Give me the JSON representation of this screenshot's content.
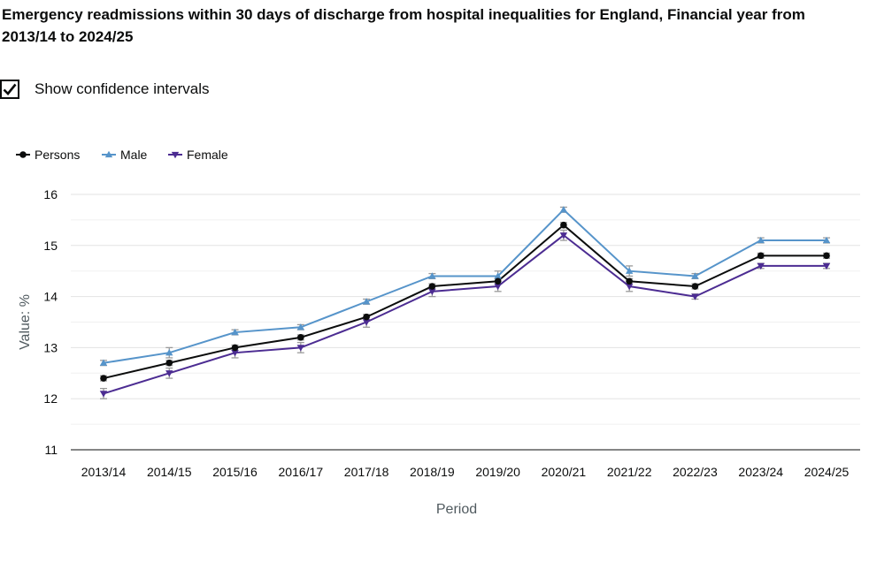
{
  "page": {
    "title": "Emergency readmissions within 30 days of discharge from hospital inequalities for England, Financial year from 2013/14 to 2024/25",
    "toggle_label": "Show confidence intervals",
    "toggle_checked": true,
    "toggle_icon": "check-icon"
  },
  "chart_data": {
    "type": "line",
    "title": "Emergency readmissions within 30 days of discharge from hospital inequalities for England, Financial year from 2013/14 to 2024/25",
    "xlabel": "Period",
    "ylabel": "Value: %",
    "ylim": [
      11,
      16
    ],
    "yticks": [
      11,
      12,
      13,
      14,
      15,
      16
    ],
    "grid": true,
    "legend_position": "top-left",
    "confidence_intervals_shown": true,
    "categories": [
      "2013/14",
      "2014/15",
      "2015/16",
      "2016/17",
      "2017/18",
      "2018/19",
      "2019/20",
      "2020/21",
      "2021/22",
      "2022/23",
      "2023/24",
      "2024/25"
    ],
    "series": [
      {
        "name": "Persons",
        "color": "#0b0c0c",
        "marker": "circle",
        "values": [
          12.4,
          12.7,
          13.0,
          13.2,
          13.6,
          14.2,
          14.3,
          15.4,
          14.3,
          14.2,
          14.8,
          14.8
        ],
        "ci_lower": [
          12.35,
          12.65,
          12.95,
          13.15,
          13.55,
          14.15,
          14.25,
          15.35,
          14.25,
          14.15,
          14.75,
          14.75
        ],
        "ci_upper": [
          12.45,
          12.75,
          13.05,
          13.25,
          13.65,
          14.25,
          14.35,
          15.45,
          14.35,
          14.25,
          14.85,
          14.85
        ]
      },
      {
        "name": "Male",
        "color": "#5694ca",
        "marker": "triangle-up",
        "values": [
          12.7,
          12.9,
          13.3,
          13.4,
          13.9,
          14.4,
          14.4,
          15.7,
          14.5,
          14.4,
          15.1,
          15.1
        ],
        "ci_lower": [
          12.65,
          12.8,
          13.25,
          13.35,
          13.85,
          14.35,
          14.3,
          15.65,
          14.4,
          14.35,
          15.05,
          15.05
        ],
        "ci_upper": [
          12.75,
          13.0,
          13.35,
          13.45,
          13.95,
          14.45,
          14.5,
          15.75,
          14.6,
          14.45,
          15.15,
          15.15
        ]
      },
      {
        "name": "Female",
        "color": "#4c2c92",
        "marker": "triangle-down",
        "values": [
          12.1,
          12.5,
          12.9,
          13.0,
          13.5,
          14.1,
          14.2,
          15.2,
          14.2,
          14.0,
          14.6,
          14.6
        ],
        "ci_lower": [
          12.0,
          12.4,
          12.8,
          12.9,
          13.4,
          14.0,
          14.1,
          15.1,
          14.1,
          13.95,
          14.55,
          14.55
        ],
        "ci_upper": [
          12.2,
          12.6,
          13.0,
          13.1,
          13.6,
          14.2,
          14.3,
          15.3,
          14.3,
          14.05,
          14.65,
          14.65
        ]
      }
    ]
  }
}
